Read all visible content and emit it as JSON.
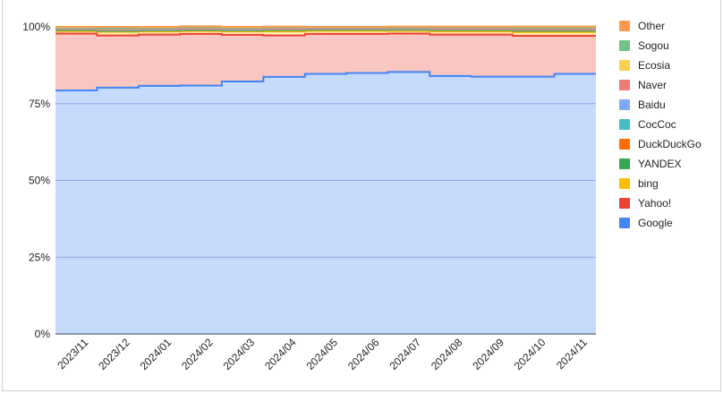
{
  "chart_data": {
    "type": "area",
    "stacked": true,
    "step": true,
    "categories": [
      "2023/11",
      "2023/12",
      "2024/01",
      "2024/02",
      "2024/03",
      "2024/04",
      "2024/05",
      "2024/06",
      "2024/07",
      "2024/08",
      "2024/09",
      "2024/10",
      "2024/11"
    ],
    "ylim": [
      0,
      100
    ],
    "yticks": [
      "0%",
      "25%",
      "50%",
      "75%",
      "100%"
    ],
    "ytick_values": [
      0,
      25,
      50,
      75,
      100
    ],
    "legend_position": "right",
    "series": [
      {
        "name": "Google",
        "color": "#4285f4",
        "values": [
          79.3,
          80.2,
          80.8,
          80.9,
          82.2,
          83.7,
          84.7,
          85.0,
          85.3,
          84.0,
          83.8,
          83.8,
          84.7
        ]
      },
      {
        "name": "Yahoo!",
        "color": "#ea4335",
        "values": [
          18.5,
          17.0,
          16.7,
          16.8,
          15.2,
          13.5,
          13.0,
          12.7,
          12.5,
          13.5,
          13.7,
          13.3,
          12.4
        ]
      },
      {
        "name": "bing",
        "color": "#fbbc04",
        "values": [
          0.8,
          1.2,
          1.0,
          0.9,
          1.1,
          1.3,
          1.0,
          1.0,
          0.9,
          1.0,
          1.0,
          1.2,
          1.2
        ]
      },
      {
        "name": "YANDEX",
        "color": "#34a853",
        "values": [
          0.3,
          0.3,
          0.3,
          0.3,
          0.3,
          0.4,
          0.3,
          0.3,
          0.3,
          0.4,
          0.4,
          0.4,
          0.4
        ]
      },
      {
        "name": "DuckDuckGo",
        "color": "#ff6d01",
        "values": [
          0.2,
          0.2,
          0.2,
          0.2,
          0.2,
          0.2,
          0.2,
          0.2,
          0.2,
          0.2,
          0.2,
          0.2,
          0.2
        ]
      },
      {
        "name": "CocCoc",
        "color": "#46bdc6",
        "values": [
          0.1,
          0.1,
          0.1,
          0.1,
          0.1,
          0.1,
          0.1,
          0.1,
          0.1,
          0.1,
          0.1,
          0.1,
          0.1
        ]
      },
      {
        "name": "Baidu",
        "color": "#7baaf7",
        "values": [
          0.2,
          0.2,
          0.2,
          0.2,
          0.2,
          0.2,
          0.2,
          0.2,
          0.2,
          0.2,
          0.2,
          0.2,
          0.2
        ]
      },
      {
        "name": "Naver",
        "color": "#f07b72",
        "values": [
          0.1,
          0.1,
          0.1,
          0.1,
          0.1,
          0.1,
          0.1,
          0.1,
          0.1,
          0.1,
          0.1,
          0.1,
          0.1
        ]
      },
      {
        "name": "Ecosia",
        "color": "#fcd04f",
        "values": [
          0.2,
          0.3,
          0.3,
          0.3,
          0.3,
          0.3,
          0.2,
          0.2,
          0.2,
          0.3,
          0.3,
          0.4,
          0.4
        ]
      },
      {
        "name": "Sogou",
        "color": "#71c287",
        "values": [
          0.05,
          0.05,
          0.05,
          0.05,
          0.05,
          0.05,
          0.05,
          0.05,
          0.05,
          0.05,
          0.05,
          0.05,
          0.05
        ]
      },
      {
        "name": "Other",
        "color": "#ff994d",
        "values": [
          0.25,
          0.35,
          0.25,
          0.35,
          0.25,
          0.25,
          0.15,
          0.15,
          0.25,
          0.25,
          0.25,
          0.35,
          0.35
        ]
      }
    ]
  }
}
